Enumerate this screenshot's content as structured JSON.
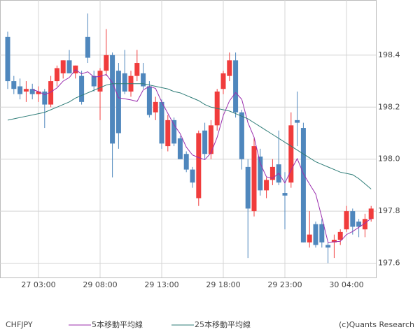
{
  "chart_data": {
    "type": "candlestick",
    "title": "CHFJPY",
    "credit": "(c)Quants Research",
    "categories": [
      null,
      null,
      null,
      null,
      null,
      "27 03:00",
      null,
      null,
      null,
      null,
      null,
      null,
      null,
      null,
      null,
      "29 08:00",
      null,
      null,
      null,
      null,
      null,
      null,
      null,
      null,
      null,
      "29 13:00",
      null,
      null,
      null,
      null,
      null,
      null,
      null,
      null,
      null,
      "29 18:00",
      null,
      null,
      null,
      null,
      null,
      null,
      null,
      null,
      null,
      "29 23:00",
      null,
      null,
      null,
      null,
      null,
      null,
      null,
      null,
      null,
      "30 04:00",
      null,
      null,
      null,
      null
    ],
    "open": [
      198.47,
      198.3,
      198.28,
      198.26,
      198.27,
      198.25,
      198.26,
      198.21,
      198.3,
      198.33,
      198.38,
      198.33,
      198.32,
      198.47,
      198.32,
      198.26,
      198.34,
      198.4,
      198.34,
      198.33,
      198.26,
      198.32,
      198.33,
      198.28,
      198.18,
      198.22,
      198.05,
      198.15,
      198.08,
      198.02,
      197.96,
      197.85,
      198.11,
      198.02,
      198.13,
      198.27,
      198.32,
      198.38,
      198.18,
      197.97,
      197.8,
      198.01,
      197.88,
      197.92,
      197.98,
      197.87,
      197.91,
      198.15,
      198.12,
      197.68,
      197.75,
      197.75,
      197.67,
      197.68,
      197.69,
      197.73,
      197.8,
      197.76,
      197.73,
      197.77
    ],
    "high": [
      198.49,
      198.32,
      198.31,
      198.3,
      198.29,
      198.28,
      198.27,
      198.32,
      198.36,
      198.38,
      198.42,
      198.36,
      198.34,
      198.56,
      198.34,
      198.35,
      198.5,
      198.41,
      198.37,
      198.42,
      198.34,
      198.42,
      198.37,
      198.3,
      198.24,
      198.23,
      198.17,
      198.16,
      198.09,
      198.03,
      197.97,
      198.11,
      198.14,
      198.15,
      198.27,
      198.34,
      198.41,
      198.41,
      198.19,
      198.0,
      198.08,
      198.04,
      197.93,
      198.0,
      198.11,
      197.95,
      198.18,
      198.26,
      198.14,
      197.8,
      197.76,
      197.77,
      197.68,
      197.71,
      197.73,
      197.82,
      197.81,
      197.77,
      197.79,
      197.82
    ],
    "low": [
      198.27,
      198.25,
      198.23,
      198.22,
      198.23,
      198.22,
      198.12,
      198.2,
      198.28,
      198.31,
      198.33,
      198.31,
      198.21,
      198.37,
      198.26,
      198.15,
      198.32,
      197.93,
      198.04,
      198.25,
      198.24,
      198.3,
      198.27,
      198.16,
      198.15,
      198.04,
      198.03,
      198.05,
      198.0,
      197.95,
      197.89,
      197.82,
      198.0,
      198.0,
      198.11,
      198.25,
      198.3,
      198.16,
      197.96,
      197.62,
      197.78,
      197.86,
      197.85,
      197.9,
      197.9,
      197.73,
      197.89,
      198.05,
      197.68,
      197.66,
      197.66,
      197.66,
      197.6,
      197.62,
      197.67,
      197.72,
      197.71,
      197.7,
      197.7,
      197.76
    ],
    "close": [
      198.3,
      198.27,
      198.25,
      198.27,
      198.25,
      198.26,
      198.21,
      198.3,
      198.35,
      198.38,
      198.33,
      198.36,
      198.22,
      198.39,
      198.28,
      198.34,
      198.4,
      198.06,
      198.1,
      198.26,
      198.32,
      198.37,
      198.28,
      198.17,
      198.22,
      198.06,
      198.15,
      198.06,
      198.0,
      197.96,
      197.91,
      198.1,
      198.02,
      198.13,
      198.26,
      198.33,
      198.38,
      198.18,
      198.0,
      197.81,
      198.05,
      197.88,
      197.92,
      197.97,
      197.91,
      197.86,
      198.13,
      198.14,
      197.68,
      197.71,
      197.67,
      197.68,
      197.66,
      197.69,
      197.72,
      197.8,
      197.74,
      197.74,
      197.77,
      197.81
    ],
    "up_color": "#f03c3c",
    "down_color": "#4f87bd",
    "series": [
      {
        "name": "5本移動平均線",
        "color": "#9b2fae",
        "values": [
          null,
          null,
          null,
          null,
          198.268,
          198.26,
          198.248,
          198.258,
          198.274,
          198.3,
          198.314,
          198.344,
          198.328,
          198.336,
          198.316,
          198.318,
          198.326,
          198.294,
          198.236,
          198.232,
          198.228,
          198.222,
          198.266,
          198.28,
          198.272,
          198.22,
          198.176,
          198.132,
          198.098,
          198.046,
          198.016,
          198.006,
          197.998,
          198.024,
          198.084,
          198.168,
          198.224,
          198.256,
          198.23,
          198.14,
          198.084,
          197.984,
          197.932,
          197.926,
          197.946,
          197.908,
          197.958,
          198.002,
          197.944,
          197.904,
          197.866,
          197.776,
          197.68,
          197.682,
          197.684,
          197.71,
          197.722,
          197.738,
          197.754,
          197.772
        ]
      },
      {
        "name": "25本移動平均線",
        "color": "#2f7d78",
        "values": [
          198.15,
          198.155,
          198.16,
          198.165,
          198.17,
          198.175,
          198.18,
          198.19,
          198.2,
          198.21,
          198.22,
          198.235,
          198.245,
          198.255,
          198.265,
          198.275,
          198.285,
          198.29,
          198.29,
          198.29,
          198.29,
          198.29,
          198.29,
          198.285,
          198.28,
          198.275,
          198.27,
          198.26,
          198.255,
          198.245,
          198.235,
          198.225,
          198.21,
          198.2,
          198.195,
          198.19,
          198.185,
          198.175,
          198.165,
          198.155,
          198.14,
          198.125,
          198.11,
          198.095,
          198.08,
          198.065,
          198.05,
          198.035,
          198.02,
          198.005,
          197.99,
          197.98,
          197.97,
          197.96,
          197.95,
          197.945,
          197.94,
          197.925,
          197.905,
          197.885
        ]
      }
    ],
    "ylim": [
      197.545,
      198.612
    ],
    "yticks": [
      197.6,
      197.8,
      {
        "value": 198,
        "label": "198.0"
      },
      198.2,
      198.4
    ],
    "grid": true
  }
}
